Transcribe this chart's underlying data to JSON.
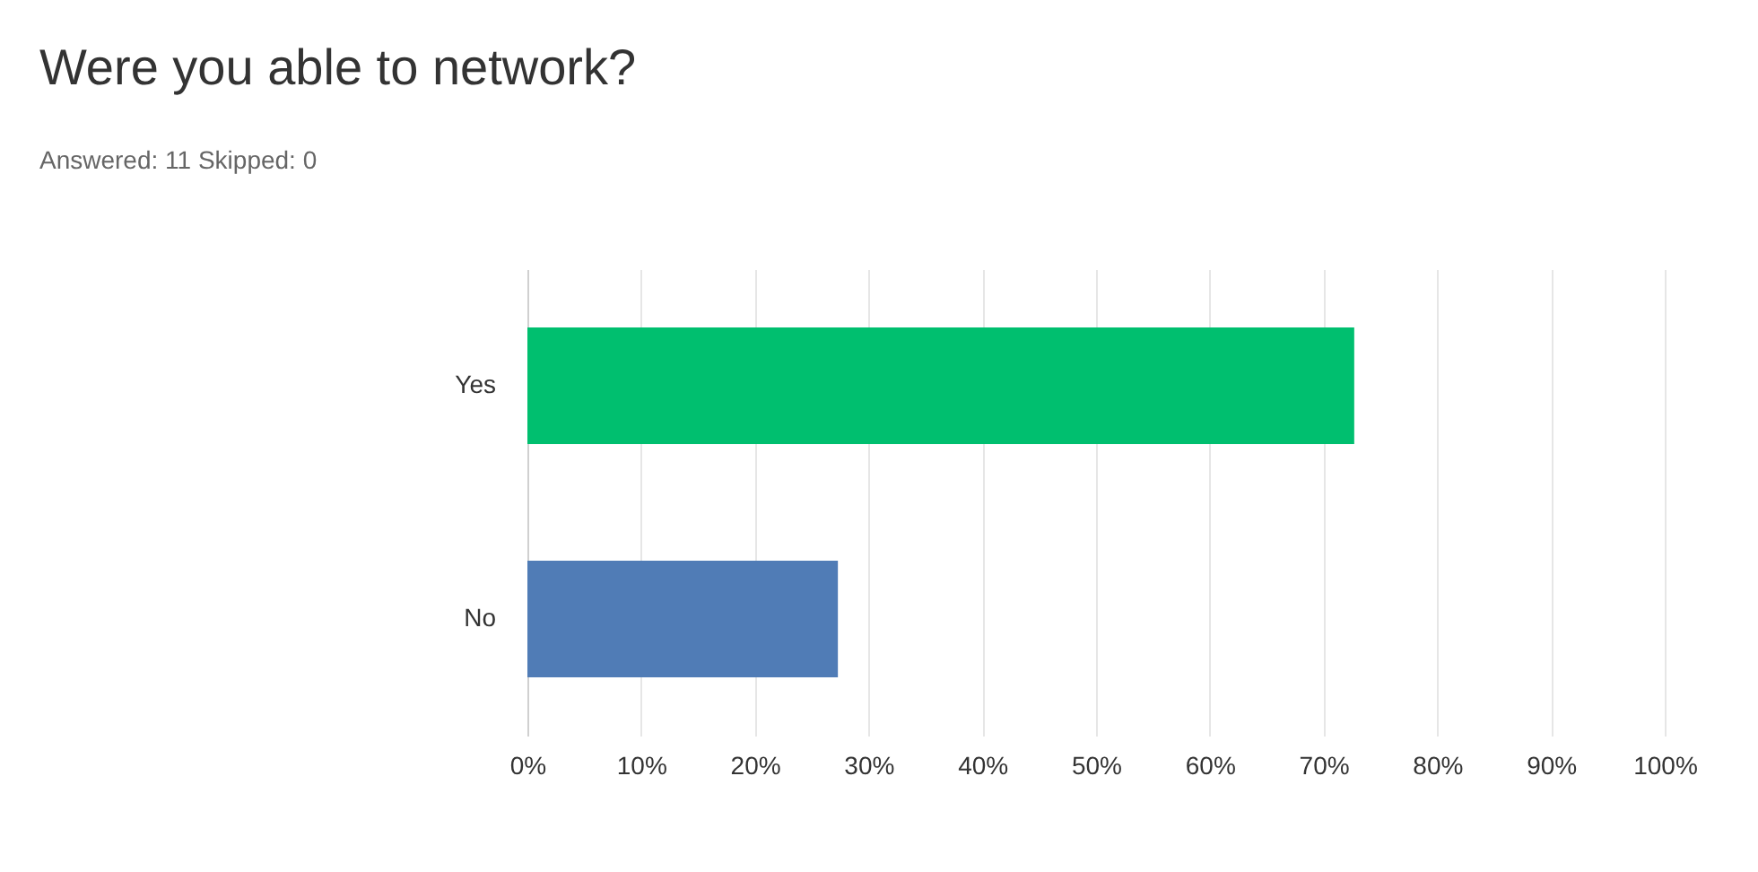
{
  "chart_data": {
    "type": "bar",
    "orientation": "horizontal",
    "title": "Were you able to network?",
    "subtitle": "Answered: 11    Skipped: 0",
    "categories": [
      "Yes",
      "No"
    ],
    "values": [
      72.7,
      27.3
    ],
    "colors": [
      "#00bf6f",
      "#507cb6"
    ],
    "xlim": [
      0,
      100
    ],
    "xticks": [
      {
        "value": 0,
        "label": "0%"
      },
      {
        "value": 10,
        "label": "10%"
      },
      {
        "value": 20,
        "label": "20%"
      },
      {
        "value": 30,
        "label": "30%"
      },
      {
        "value": 40,
        "label": "40%"
      },
      {
        "value": 50,
        "label": "50%"
      },
      {
        "value": 60,
        "label": "60%"
      },
      {
        "value": 70,
        "label": "70%"
      },
      {
        "value": 80,
        "label": "80%"
      },
      {
        "value": 90,
        "label": "90%"
      },
      {
        "value": 100,
        "label": "100%"
      }
    ],
    "grid": "x",
    "legend": false
  }
}
